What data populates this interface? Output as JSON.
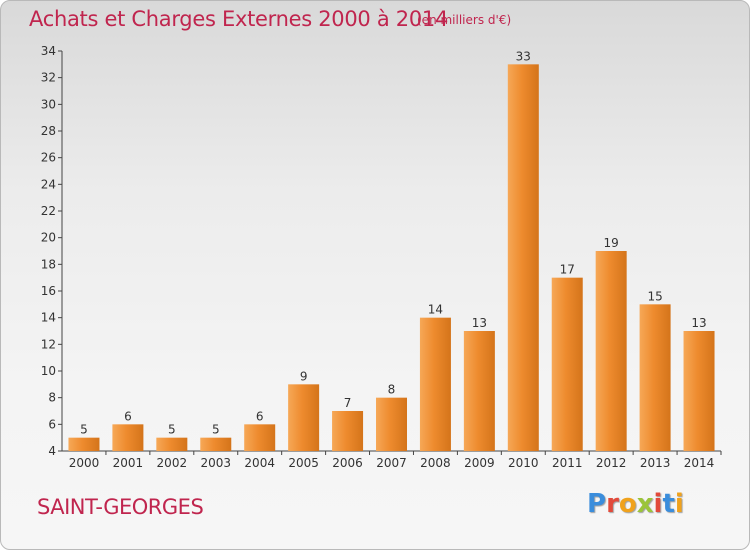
{
  "header": {
    "title": "Achats et Charges Externes 2000 à 2014",
    "unit": "(en milliers d'€)"
  },
  "footer": {
    "commune": "SAINT-GEORGES",
    "logo_letters": [
      "P",
      "r",
      "o",
      "x",
      "i",
      "t",
      "i"
    ],
    "logo_colors": [
      "#3a8ddc",
      "#e24a3b",
      "#f0a21c",
      "#9bc43a",
      "#e24a3b",
      "#3a8ddc",
      "#f0a21c"
    ]
  },
  "colors": {
    "bar": "#ee8b2e",
    "bar_light": "#f6a857",
    "bar_dark": "#d4741a",
    "axis": "#444444",
    "text": "#333333"
  },
  "chart_data": {
    "type": "bar",
    "categories": [
      "2000",
      "2001",
      "2002",
      "2003",
      "2004",
      "2005",
      "2006",
      "2007",
      "2008",
      "2009",
      "2010",
      "2011",
      "2012",
      "2013",
      "2014"
    ],
    "values": [
      5,
      6,
      5,
      5,
      6,
      9,
      7,
      8,
      14,
      13,
      33,
      17,
      19,
      15,
      13
    ],
    "ylim": [
      4,
      34
    ],
    "yticks": [
      4,
      6,
      8,
      10,
      12,
      14,
      16,
      18,
      20,
      22,
      24,
      26,
      28,
      30,
      32,
      34
    ],
    "xlabel": "",
    "ylabel": "",
    "grid": false,
    "data_labels": true
  }
}
